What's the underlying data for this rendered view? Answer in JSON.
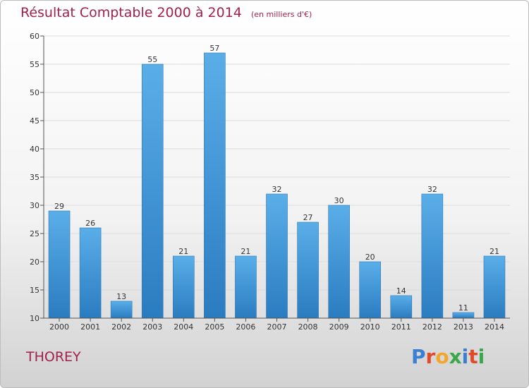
{
  "header": {
    "title": "Résultat Comptable 2000 à 2014",
    "unit": "(en milliers d'€)"
  },
  "footer": {
    "commune": "THOREY",
    "logo_letters": [
      "P",
      "r",
      "o",
      "x",
      "i",
      "t",
      "i"
    ],
    "logo_colors": [
      "#3a7fd1",
      "#e04a2a",
      "#f2a62b",
      "#3aa84a",
      "#3a7fd1",
      "#e04a2a",
      "#3aa84a"
    ]
  },
  "chart_data": {
    "type": "bar",
    "title": "Résultat Comptable 2000 à 2014",
    "subtitle": "(en milliers d'€)",
    "categories": [
      "2000",
      "2001",
      "2002",
      "2003",
      "2004",
      "2005",
      "2006",
      "2007",
      "2008",
      "2009",
      "2010",
      "2011",
      "2012",
      "2013",
      "2014"
    ],
    "values": [
      29,
      26,
      13,
      55,
      21,
      57,
      21,
      32,
      27,
      30,
      20,
      14,
      32,
      11,
      21
    ],
    "ylim": [
      10,
      60
    ],
    "yticks": [
      10,
      15,
      20,
      25,
      30,
      35,
      40,
      45,
      50,
      55,
      60
    ],
    "grid": true,
    "bar_color": "#3f95d8"
  }
}
